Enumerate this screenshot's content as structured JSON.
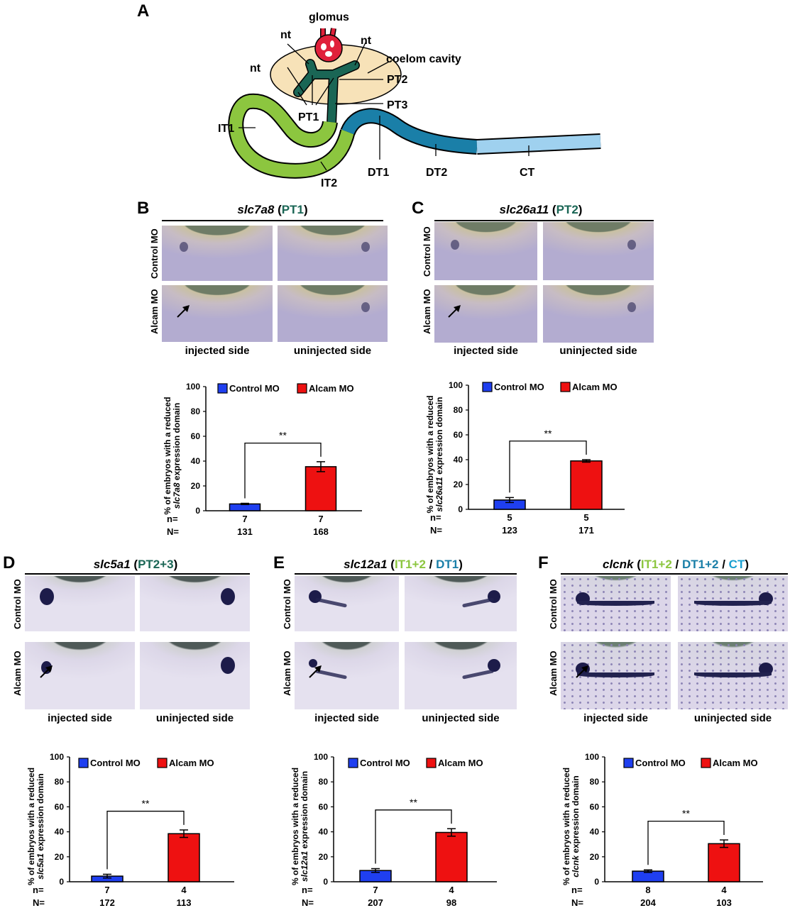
{
  "panel_a": {
    "letter": "A",
    "labels": {
      "glomus": "glomus",
      "nt": "nt",
      "coelom": "coelom cavity",
      "pt1": "PT1",
      "pt2": "PT2",
      "pt3": "PT3",
      "it1": "IT1",
      "it2": "IT2",
      "dt1": "DT1",
      "dt2": "DT2",
      "ct": "CT"
    },
    "colors": {
      "glomus": "#e0203a",
      "coelom": "#f7e2b8",
      "pt": "#1a6655",
      "it": "#8cc63f",
      "dt": "#1a7fa8",
      "ct": "#9fd1ef"
    }
  },
  "image_panels": [
    {
      "letter": "B",
      "gene": "slc7a8",
      "segments": [
        {
          "text": "PT1",
          "color": "#1a6655"
        }
      ],
      "rows": [
        "Control MO",
        "Alcam MO"
      ],
      "cols": [
        "injected side",
        "uninjected side"
      ]
    },
    {
      "letter": "C",
      "gene": "slc26a11",
      "segments": [
        {
          "text": "PT2",
          "color": "#1a6655"
        }
      ],
      "rows": [
        "Control MO",
        "Alcam MO"
      ],
      "cols": [
        "injected side",
        "uninjected side"
      ]
    },
    {
      "letter": "D",
      "gene": "slc5a1",
      "segments": [
        {
          "text": "PT2+3",
          "color": "#1a6655"
        }
      ],
      "rows": [
        "Control MO",
        "Alcam MO"
      ],
      "cols": [
        "injected side",
        "uninjected side"
      ]
    },
    {
      "letter": "E",
      "gene": "slc12a1",
      "segments": [
        {
          "text": "IT1+2",
          "color": "#8cc63f"
        },
        {
          "text": " / ",
          "color": "#000000"
        },
        {
          "text": "DT1",
          "color": "#1a7fa8"
        }
      ],
      "rows": [
        "Control MO",
        "Alcam MO"
      ],
      "cols": [
        "injected side",
        "uninjected side"
      ]
    },
    {
      "letter": "F",
      "gene": "clcnk",
      "segments": [
        {
          "text": "IT1+2",
          "color": "#8cc63f"
        },
        {
          "text": " / ",
          "color": "#000000"
        },
        {
          "text": "DT1+2",
          "color": "#1a7fa8"
        },
        {
          "text": " / ",
          "color": "#000000"
        },
        {
          "text": "CT",
          "color": "#1a9fd0"
        }
      ],
      "rows": [
        "Control MO",
        "Alcam MO"
      ],
      "cols": [
        "injected side",
        "uninjected side"
      ]
    }
  ],
  "chart_data": [
    {
      "type": "bar",
      "panel": "B",
      "ylabel_line1": "% of embryos with a reduced",
      "gene": "slc7a8",
      "ylabel_suffix": " expression domain",
      "ylim": [
        0,
        100
      ],
      "yticks": [
        0,
        20,
        40,
        60,
        80,
        100
      ],
      "categories": [
        "Control MO",
        "Alcam MO"
      ],
      "values": [
        5.5,
        35.5
      ],
      "errors": [
        0.5,
        4
      ],
      "colors": [
        "#1f3ff0",
        "#ee1111"
      ],
      "significance": "**",
      "legend": "top",
      "n_label": "n=",
      "N_label": "N=",
      "n": [
        "7",
        "7"
      ],
      "N": [
        "131",
        "168"
      ]
    },
    {
      "type": "bar",
      "panel": "C",
      "ylabel_line1": "% of embryos with a reduced",
      "gene": "slc26a11",
      "ylabel_suffix": " expression domain",
      "ylim": [
        0,
        100
      ],
      "yticks": [
        0,
        20,
        40,
        60,
        80,
        100
      ],
      "categories": [
        "Control MO",
        "Alcam MO"
      ],
      "values": [
        7.5,
        39
      ],
      "errors": [
        2,
        1
      ],
      "colors": [
        "#1f3ff0",
        "#ee1111"
      ],
      "significance": "**",
      "legend": "top",
      "n_label": "n=",
      "N_label": "N=",
      "n": [
        "5",
        "5"
      ],
      "N": [
        "123",
        "171"
      ]
    },
    {
      "type": "bar",
      "panel": "D",
      "ylabel_line1": "% of embryos with a reduced",
      "gene": "slc5a1",
      "ylabel_suffix": " expression domain",
      "ylim": [
        0,
        100
      ],
      "yticks": [
        0,
        20,
        40,
        60,
        80,
        100
      ],
      "categories": [
        "Control MO",
        "Alcam MO"
      ],
      "values": [
        4.5,
        38.5
      ],
      "errors": [
        1.5,
        3
      ],
      "colors": [
        "#1f3ff0",
        "#ee1111"
      ],
      "significance": "**",
      "legend": "top",
      "n_label": "n=",
      "N_label": "N=",
      "n": [
        "7",
        "4"
      ],
      "N": [
        "172",
        "113"
      ]
    },
    {
      "type": "bar",
      "panel": "E",
      "ylabel_line1": "% of embryos with a reduced",
      "gene": "slc12a1",
      "ylabel_suffix": " expression domain",
      "ylim": [
        0,
        100
      ],
      "yticks": [
        0,
        20,
        40,
        60,
        80,
        100
      ],
      "categories": [
        "Control MO",
        "Alcam MO"
      ],
      "values": [
        9,
        39.5
      ],
      "errors": [
        1.5,
        3
      ],
      "colors": [
        "#1f3ff0",
        "#ee1111"
      ],
      "significance": "**",
      "legend": "top",
      "n_label": "n=",
      "N_label": "N=",
      "n": [
        "7",
        "4"
      ],
      "N": [
        "207",
        "98"
      ]
    },
    {
      "type": "bar",
      "panel": "F",
      "ylabel_line1": "% of embryos with a reduced",
      "gene": "clcnk",
      "ylabel_suffix": " expression domain",
      "ylim": [
        0,
        100
      ],
      "yticks": [
        0,
        20,
        40,
        60,
        80,
        100
      ],
      "categories": [
        "Control MO",
        "Alcam MO"
      ],
      "values": [
        8.5,
        30.5
      ],
      "errors": [
        1,
        3
      ],
      "colors": [
        "#1f3ff0",
        "#ee1111"
      ],
      "significance": "**",
      "legend": "top",
      "n_label": "n=",
      "N_label": "N=",
      "n": [
        "8",
        "4"
      ],
      "N": [
        "204",
        "103"
      ]
    }
  ]
}
